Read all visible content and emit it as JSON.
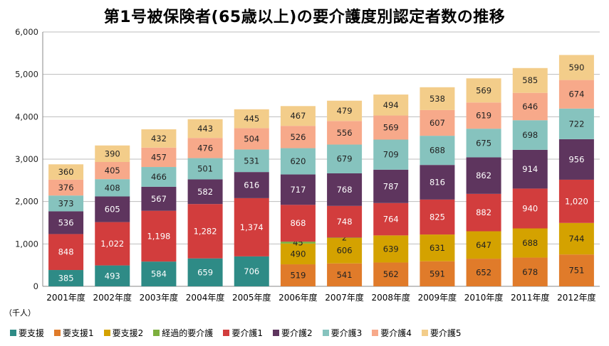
{
  "chart_data": {
    "type": "bar",
    "stacked": true,
    "title": "第1号被保険者(65歳以上)の要介護度別認定者数の推移",
    "unit_label": "（千人）",
    "categories": [
      "2001年度",
      "2002年度",
      "2003年度",
      "2004年度",
      "2005年度",
      "2006年度",
      "2007年度",
      "2008年度",
      "2009年度",
      "2010年度",
      "2011年度",
      "2012年度"
    ],
    "ylim": [
      0,
      6000
    ],
    "yticks": [
      "0",
      "1,000",
      "2,000",
      "3,000",
      "4,000",
      "5,000",
      "6,000"
    ],
    "grid": true,
    "legend_position": "bottom",
    "series": [
      {
        "name": "要支援",
        "color": "#2e8b86",
        "values": [
          385,
          493,
          584,
          659,
          706,
          null,
          null,
          null,
          null,
          null,
          null,
          null
        ],
        "labels": [
          "385",
          "493",
          "584",
          "659",
          "706",
          "",
          "",
          "",
          "",
          "",
          "",
          ""
        ]
      },
      {
        "name": "要支援1",
        "color": "#e07b2a",
        "values": [
          null,
          null,
          null,
          null,
          null,
          519,
          541,
          562,
          591,
          652,
          678,
          751
        ],
        "labels": [
          "",
          "",
          "",
          "",
          "",
          "519",
          "541",
          "562",
          "591",
          "652",
          "678",
          "751"
        ]
      },
      {
        "name": "要支援2",
        "color": "#d4a200",
        "values": [
          null,
          null,
          null,
          null,
          null,
          490,
          606,
          639,
          631,
          647,
          688,
          744
        ],
        "labels": [
          "",
          "",
          "",
          "",
          "",
          "490",
          "606",
          "639",
          "631",
          "647",
          "688",
          "744"
        ]
      },
      {
        "name": "経過的要介護",
        "color": "#7daf3e",
        "values": [
          null,
          null,
          null,
          null,
          null,
          45,
          2,
          null,
          null,
          null,
          null,
          null
        ],
        "labels": [
          "",
          "",
          "",
          "",
          "",
          "45",
          "2",
          "",
          "",
          "",
          "",
          ""
        ]
      },
      {
        "name": "要介護1",
        "color": "#d23d3d",
        "values": [
          848,
          1022,
          1198,
          1282,
          1374,
          868,
          748,
          764,
          825,
          882,
          940,
          1020
        ],
        "labels": [
          "848",
          "1,022",
          "1,198",
          "1,282",
          "1,374",
          "868",
          "748",
          "764",
          "825",
          "882",
          "940",
          "1,020"
        ]
      },
      {
        "name": "要介護2",
        "color": "#5e355e",
        "values": [
          536,
          605,
          567,
          582,
          616,
          717,
          768,
          787,
          816,
          862,
          914,
          956
        ],
        "labels": [
          "536",
          "605",
          "567",
          "582",
          "616",
          "717",
          "768",
          "787",
          "816",
          "862",
          "914",
          "956"
        ]
      },
      {
        "name": "要介護3",
        "color": "#86c3be",
        "values": [
          373,
          408,
          466,
          501,
          531,
          620,
          679,
          709,
          688,
          675,
          698,
          722
        ],
        "labels": [
          "373",
          "408",
          "466",
          "501",
          "531",
          "620",
          "679",
          "709",
          "688",
          "675",
          "698",
          "722"
        ]
      },
      {
        "name": "要介護4",
        "color": "#f7a98a",
        "values": [
          376,
          405,
          457,
          476,
          504,
          526,
          556,
          569,
          607,
          619,
          646,
          674
        ],
        "labels": [
          "376",
          "405",
          "457",
          "476",
          "504",
          "526",
          "556",
          "569",
          "607",
          "619",
          "646",
          "674"
        ]
      },
      {
        "name": "要介護5",
        "color": "#f3cd8a",
        "values": [
          360,
          390,
          432,
          443,
          445,
          467,
          479,
          494,
          538,
          569,
          585,
          590
        ],
        "labels": [
          "360",
          "390",
          "432",
          "443",
          "445",
          "467",
          "479",
          "494",
          "538",
          "569",
          "585",
          "590"
        ]
      }
    ]
  }
}
